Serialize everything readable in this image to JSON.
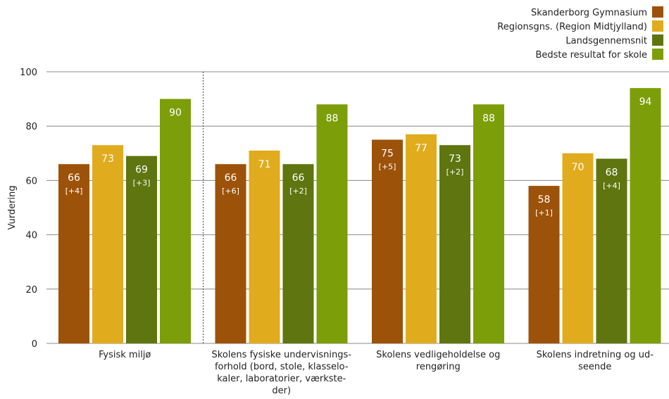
{
  "chart_data": {
    "type": "bar",
    "ylabel": "Vurdering",
    "ylim": [
      0,
      100
    ],
    "yticks": [
      0,
      20,
      40,
      60,
      80,
      100
    ],
    "grid": true,
    "legend_position": "top-right",
    "categories": [
      [
        "Fysisk miljø"
      ],
      [
        "Skolens fysiske undervisnings-",
        "forhold (bord, stole, klasselo-",
        "kaler, laboratorier, værkste-",
        "der)"
      ],
      [
        "Skolens vedligeholdelse og",
        "rengøring"
      ],
      [
        "Skolens indretning og ud-",
        "seende"
      ]
    ],
    "series": [
      {
        "name": "Skanderborg Gymnasium",
        "color": "#9c5208",
        "values": [
          66,
          66,
          75,
          58
        ],
        "diffs": [
          "[+4]",
          "[+6]",
          "[+5]",
          "[+1]"
        ]
      },
      {
        "name": "Regionsgns. (Region Midtjylland)",
        "color": "#e0ac1e",
        "values": [
          73,
          71,
          77,
          70
        ],
        "diffs": [
          "",
          "",
          "",
          ""
        ]
      },
      {
        "name": "Landsgennemsnit",
        "color": "#5e7510",
        "values": [
          69,
          66,
          73,
          68
        ],
        "diffs": [
          "[+3]",
          "[+2]",
          "[+2]",
          "[+4]"
        ]
      },
      {
        "name": "Bedste resultat for skole",
        "color": "#7c9e08",
        "values": [
          90,
          88,
          88,
          94
        ],
        "diffs": [
          "",
          "",
          "",
          ""
        ]
      }
    ],
    "plot_heights": [
      66,
      73,
      69,
      90
    ],
    "separator_after_category": 0
  }
}
